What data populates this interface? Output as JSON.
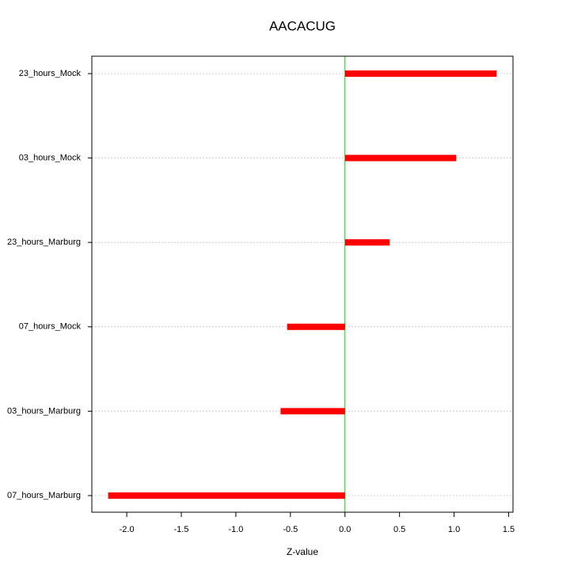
{
  "chart_data": {
    "type": "hbar",
    "title": "AACACUG",
    "x_label": "Z-value",
    "categories": [
      "23_hours_Mock",
      "03_hours_Mock",
      "23_hours_Marburg",
      "07_hours_Mock",
      "03_hours_Marburg",
      "07_hours_Marburg"
    ],
    "values": [
      1.39,
      1.02,
      0.41,
      -0.53,
      -0.59,
      -2.17
    ],
    "color": "#ff0000",
    "xlim": [
      -2.32,
      1.54
    ],
    "xticks": [
      {
        "value": -2,
        "label": "-2.0"
      },
      -1.5,
      {
        "value": -1,
        "label": "-1.0"
      },
      -0.5,
      {
        "value": 0,
        "label": "0.0"
      },
      0.5,
      {
        "value": 1,
        "label": "1.0"
      },
      1.5
    ],
    "reference_line": 0,
    "reference_color": "#00dd00",
    "grid": true
  }
}
